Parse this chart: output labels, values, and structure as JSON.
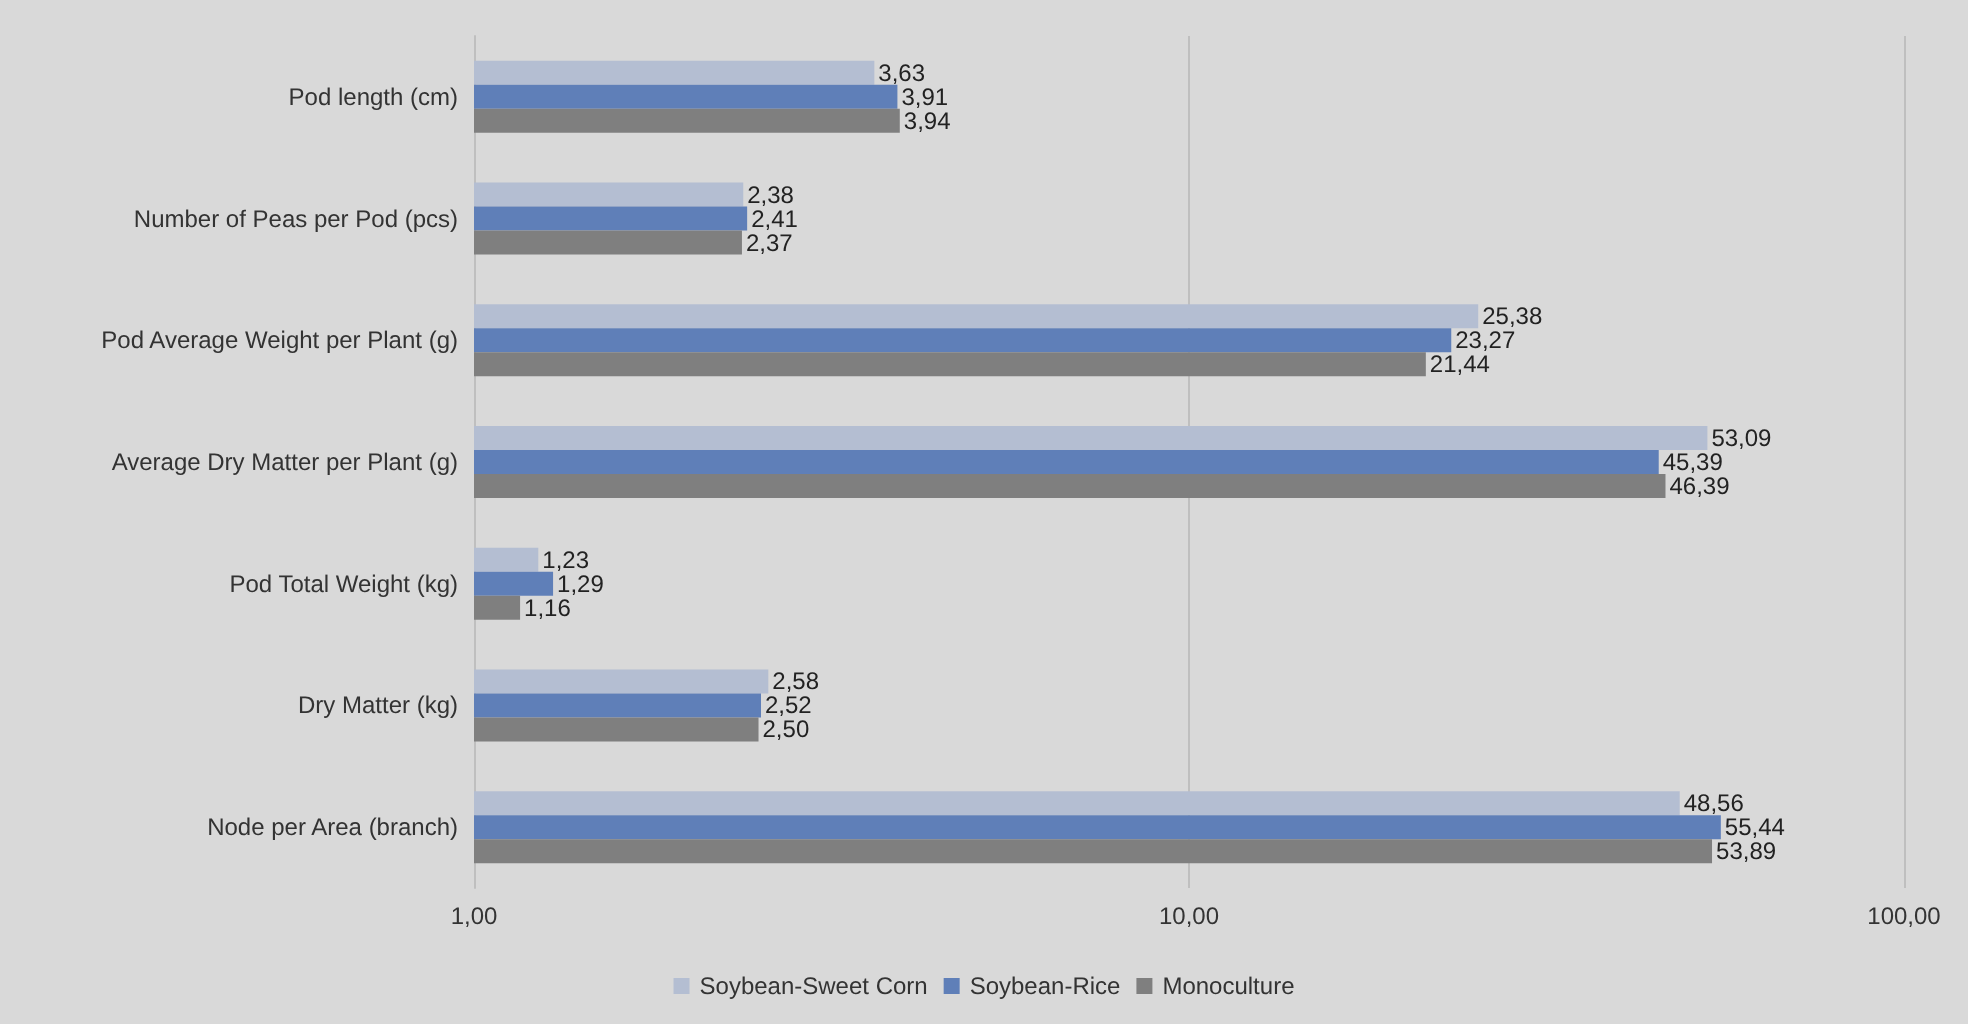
{
  "chart_data": {
    "type": "bar",
    "orientation": "horizontal",
    "log": "x",
    "grid": "x",
    "legend": "bottom",
    "categories": [
      "Pod length (cm)",
      "Number of Peas per Pod (pcs)",
      "Pod Average Weight per Plant (g)",
      "Average Dry Matter per Plant (g)",
      "Pod Total Weight (kg)",
      "Dry Matter (kg)",
      "Node per Area (branch)"
    ],
    "xlim": [
      1,
      100
    ],
    "xticks": [
      {
        "value": 1,
        "label": "1,00"
      },
      {
        "value": 10,
        "label": "10,00"
      },
      {
        "value": 100,
        "label": "100,00"
      }
    ],
    "series": [
      {
        "name": "Soybean-Sweet Corn",
        "color": "#b4bed2",
        "values": [
          3.63,
          2.38,
          25.38,
          53.09,
          1.23,
          2.58,
          48.56
        ],
        "value_labels": [
          "3,63",
          "2,38",
          "25,38",
          "53,09",
          "1,23",
          "2,58",
          "48,56"
        ]
      },
      {
        "name": "Soybean-Rice",
        "color": "#5f7fb8",
        "values": [
          3.91,
          2.41,
          23.27,
          45.39,
          1.29,
          2.52,
          55.44
        ],
        "value_labels": [
          "3,91",
          "2,41",
          "23,27",
          "45,39",
          "1,29",
          "2,52",
          "55,44"
        ]
      },
      {
        "name": "Monoculture",
        "color": "#7f7f7f",
        "values": [
          3.94,
          2.37,
          21.44,
          46.39,
          1.16,
          2.5,
          53.89
        ],
        "value_labels": [
          "3,94",
          "2,37",
          "21,44",
          "46,39",
          "1,16",
          "2,50",
          "53,89"
        ]
      }
    ]
  }
}
